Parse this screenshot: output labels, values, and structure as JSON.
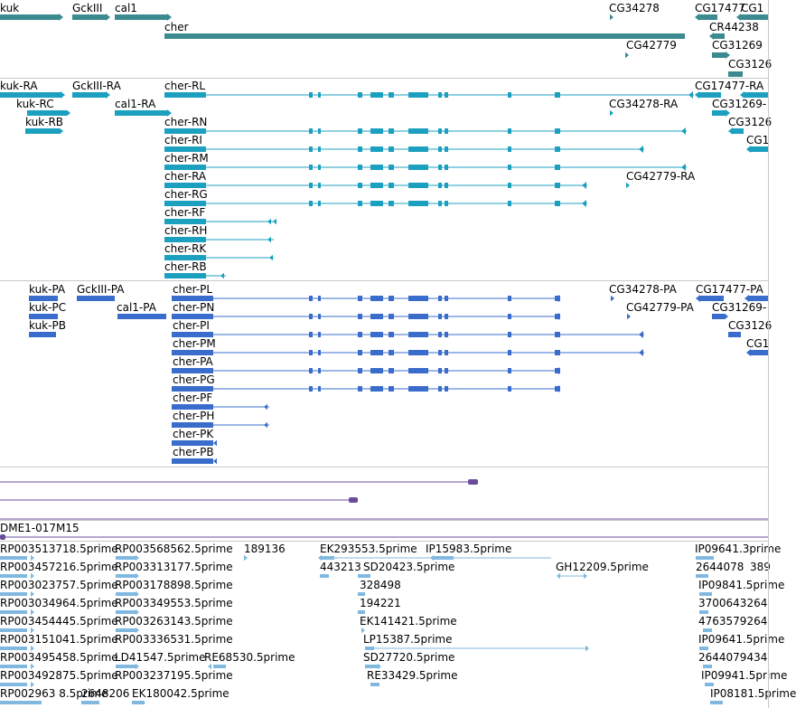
{
  "colors": {
    "gene": "#3a8a8f",
    "transcript": "#1ca0c0",
    "protein": "#3a6ccc",
    "alignment": "#6a4c9c",
    "est": "#80b8e0",
    "separator": "#c8c8c8"
  },
  "genes": [
    {
      "label": "kuk"
    },
    {
      "label": "GckIII"
    },
    {
      "label": "cal1"
    },
    {
      "label": "cher"
    },
    {
      "label": "CG34278"
    },
    {
      "label": "CG17477"
    },
    {
      "label": "CG1"
    },
    {
      "label": "CR44238"
    },
    {
      "label": "CG42779"
    },
    {
      "label": "CG31269"
    },
    {
      "label": "CG3126"
    }
  ],
  "transcripts": [
    {
      "label": "kuk-RA"
    },
    {
      "label": "GckIII-RA"
    },
    {
      "label": "cher-RL"
    },
    {
      "label": "CG17477-RA"
    },
    {
      "label": "kuk-RC"
    },
    {
      "label": "cal1-RA"
    },
    {
      "label": "CG34278-RA"
    },
    {
      "label": "CG31269-"
    },
    {
      "label": "kuk-RB"
    },
    {
      "label": "cher-RN"
    },
    {
      "label": "CG3126"
    },
    {
      "label": "cher-RI"
    },
    {
      "label": "CG1"
    },
    {
      "label": "cher-RM"
    },
    {
      "label": "cher-RA"
    },
    {
      "label": "CG42779-RA"
    },
    {
      "label": "cher-RG"
    },
    {
      "label": "cher-RF"
    },
    {
      "label": "cher-RH"
    },
    {
      "label": "cher-RK"
    },
    {
      "label": "cher-RB"
    }
  ],
  "proteins": [
    {
      "label": "kuk-PA"
    },
    {
      "label": "GckIII-PA"
    },
    {
      "label": "cher-PL"
    },
    {
      "label": "CG34278-PA"
    },
    {
      "label": "CG17477-PA"
    },
    {
      "label": "kuk-PC"
    },
    {
      "label": "cal1-PA"
    },
    {
      "label": "cher-PN"
    },
    {
      "label": "CG42779-PA"
    },
    {
      "label": "CG31269-"
    },
    {
      "label": "kuk-PB"
    },
    {
      "label": "cher-PI"
    },
    {
      "label": "CG3126"
    },
    {
      "label": "cher-PM"
    },
    {
      "label": "CG1"
    },
    {
      "label": "cher-PA"
    },
    {
      "label": "cher-PG"
    },
    {
      "label": "cher-PF"
    },
    {
      "label": "cher-PH"
    },
    {
      "label": "cher-PK"
    },
    {
      "label": "cher-PB"
    }
  ],
  "alignments": [
    {
      "label": "DME1-017M15"
    }
  ],
  "ests": [
    {
      "label": "RP003513718.5prime"
    },
    {
      "label": "RP003568562.5prime"
    },
    {
      "label": "189136"
    },
    {
      "label": "EK293553.5prime"
    },
    {
      "label": "IP15983.5prime"
    },
    {
      "label": "IP09641.3prime"
    },
    {
      "label": "RP003457216.5prime"
    },
    {
      "label": "RP003313177.5prime"
    },
    {
      "label": "443213"
    },
    {
      "label": "SD20423.5prime"
    },
    {
      "label": "GH12209.5prime"
    },
    {
      "label": "2644078"
    },
    {
      "label": "389"
    },
    {
      "label": "RP003023757.5prime"
    },
    {
      "label": "RP003178898.5prime"
    },
    {
      "label": "328498"
    },
    {
      "label": "IP09841.5prime"
    },
    {
      "label": "RP003034964.5prime"
    },
    {
      "label": "RP003349553.5prime"
    },
    {
      "label": "194221"
    },
    {
      "label": "3700643264"
    },
    {
      "label": "RP003454445.5prime"
    },
    {
      "label": "RP003263143.5prime"
    },
    {
      "label": "EK141421.5prime"
    },
    {
      "label": "4763579264"
    },
    {
      "label": "RP003151041.5prime"
    },
    {
      "label": "RP003336531.5prime"
    },
    {
      "label": "LP15387.5prime"
    },
    {
      "label": "IP09641.5prime"
    },
    {
      "label": "RP003495458.5prime"
    },
    {
      "label": "LD41547.5prime"
    },
    {
      "label": "RE68530.5prime"
    },
    {
      "label": "SD27720.5prime"
    },
    {
      "label": "2644079434"
    },
    {
      "label": "RP003492875.5prime"
    },
    {
      "label": "RP003237195.5prime"
    },
    {
      "label": "RE33429.5prime"
    },
    {
      "label": "IP09941.5prime"
    },
    {
      "label": "RP002963 8.5prime"
    },
    {
      "label": "2648206"
    },
    {
      "label": "EK180042.5prime"
    },
    {
      "label": "IP08181.5prime"
    }
  ]
}
